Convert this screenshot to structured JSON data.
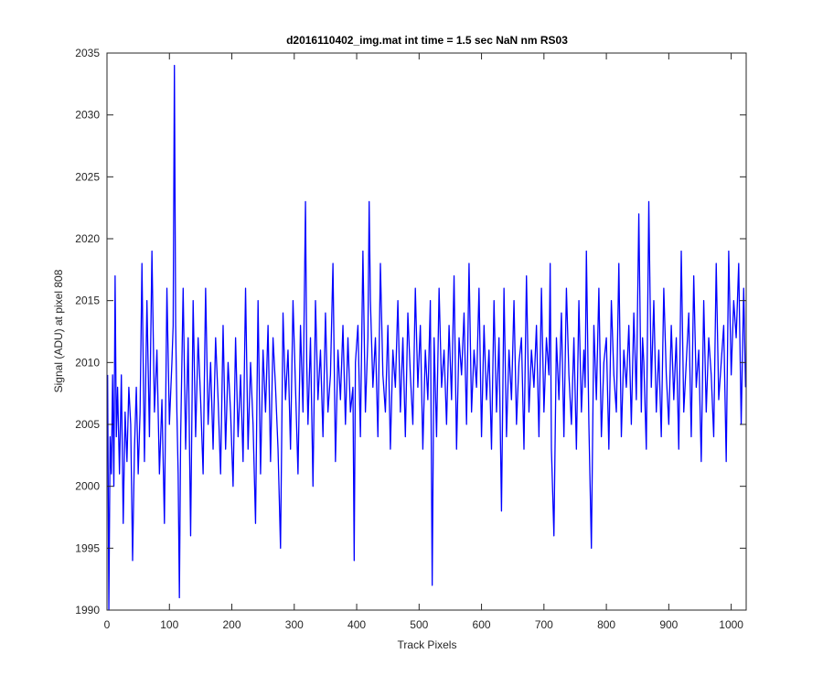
{
  "chart_data": {
    "type": "line",
    "title": "d2016110402_img.mat int time = 1.5 sec  NaN nm RS03",
    "xlabel": "Track Pixels",
    "ylabel": "Signal (ADU) at pixel 808",
    "xlim": [
      0,
      1024
    ],
    "ylim": [
      1990,
      2035
    ],
    "xticks": [
      0,
      100,
      200,
      300,
      400,
      500,
      600,
      700,
      800,
      900,
      1000
    ],
    "yticks": [
      1990,
      1995,
      2000,
      2005,
      2010,
      2015,
      2020,
      2025,
      2030,
      2035
    ],
    "grid": false,
    "line_color": "#0000ff",
    "axes_color": "#262626",
    "series": [
      {
        "x": [
          1,
          3,
          5,
          7,
          9,
          11,
          13,
          15,
          17,
          20,
          23,
          26,
          29,
          32,
          35,
          38,
          41,
          44,
          47,
          50,
          53,
          56,
          60,
          64,
          68,
          72,
          76,
          80,
          84,
          88,
          92,
          96,
          100,
          104,
          106,
          108,
          110,
          112,
          114,
          116,
          118,
          122,
          126,
          130,
          134,
          138,
          142,
          146,
          150,
          154,
          158,
          162,
          166,
          170,
          174,
          178,
          182,
          186,
          190,
          194,
          198,
          202,
          206,
          210,
          214,
          218,
          222,
          226,
          230,
          234,
          238,
          242,
          246,
          250,
          254,
          258,
          262,
          266,
          270,
          274,
          278,
          282,
          286,
          290,
          294,
          298,
          302,
          306,
          310,
          314,
          318,
          320,
          322,
          326,
          330,
          334,
          338,
          342,
          346,
          350,
          354,
          358,
          362,
          366,
          370,
          374,
          378,
          382,
          386,
          390,
          394,
          396,
          398,
          402,
          406,
          410,
          414,
          418,
          420,
          422,
          426,
          430,
          434,
          438,
          442,
          446,
          450,
          454,
          458,
          462,
          466,
          470,
          474,
          478,
          482,
          486,
          490,
          494,
          498,
          502,
          506,
          510,
          514,
          518,
          521,
          524,
          528,
          532,
          536,
          540,
          544,
          548,
          552,
          556,
          560,
          564,
          568,
          572,
          576,
          580,
          584,
          588,
          592,
          596,
          600,
          604,
          608,
          612,
          616,
          620,
          624,
          628,
          632,
          636,
          640,
          644,
          648,
          652,
          656,
          660,
          664,
          668,
          672,
          676,
          680,
          684,
          688,
          692,
          696,
          700,
          704,
          708,
          710,
          712,
          716,
          720,
          724,
          728,
          732,
          736,
          740,
          744,
          748,
          752,
          756,
          760,
          764,
          766,
          768,
          772,
          776,
          780,
          784,
          788,
          792,
          796,
          800,
          804,
          808,
          812,
          816,
          820,
          824,
          828,
          832,
          836,
          840,
          844,
          848,
          852,
          856,
          858,
          860,
          864,
          868,
          872,
          876,
          880,
          884,
          888,
          892,
          896,
          900,
          904,
          908,
          912,
          916,
          920,
          924,
          928,
          932,
          936,
          940,
          944,
          948,
          952,
          956,
          960,
          964,
          968,
          972,
          976,
          980,
          984,
          988,
          992,
          996,
          1000,
          1004,
          1008,
          1012,
          1016,
          1020,
          1023
        ],
        "y": [
          2009,
          1990,
          2004,
          2001,
          2009,
          2000,
          2017,
          2004,
          2008,
          2001,
          2009,
          1997,
          2006,
          2002,
          2008,
          2005,
          1994,
          2003,
          2008,
          2001,
          2006,
          2018,
          2002,
          2015,
          2004,
          2019,
          2006,
          2011,
          2001,
          2007,
          1997,
          2016,
          2005,
          2010,
          2013,
          2034,
          2013,
          2006,
          2001,
          1991,
          2004,
          2016,
          2003,
          2012,
          1996,
          2015,
          2004,
          2012,
          2007,
          2001,
          2016,
          2005,
          2010,
          2003,
          2012,
          2007,
          2001,
          2013,
          2003,
          2010,
          2006,
          2000,
          2012,
          2004,
          2009,
          2002,
          2016,
          2003,
          2010,
          2005,
          1997,
          2015,
          2001,
          2011,
          2006,
          2013,
          2002,
          2012,
          2008,
          2003,
          1995,
          2014,
          2007,
          2011,
          2003,
          2015,
          2008,
          2001,
          2013,
          2006,
          2023,
          2010,
          2005,
          2012,
          2000,
          2015,
          2007,
          2011,
          2004,
          2014,
          2006,
          2009,
          2018,
          2002,
          2011,
          2007,
          2013,
          2005,
          2012,
          2006,
          2008,
          1994,
          2010,
          2013,
          2004,
          2019,
          2006,
          2012,
          2023,
          2015,
          2008,
          2012,
          2004,
          2018,
          2009,
          2006,
          2013,
          2003,
          2011,
          2008,
          2015,
          2006,
          2012,
          2004,
          2014,
          2009,
          2005,
          2016,
          2008,
          2013,
          2003,
          2011,
          2007,
          2015,
          1992,
          2012,
          2004,
          2016,
          2008,
          2011,
          2005,
          2013,
          2007,
          2017,
          2003,
          2012,
          2009,
          2014,
          2005,
          2018,
          2006,
          2011,
          2008,
          2016,
          2004,
          2013,
          2007,
          2011,
          2003,
          2015,
          2006,
          2012,
          1998,
          2016,
          2004,
          2011,
          2007,
          2015,
          2005,
          2010,
          2012,
          2003,
          2017,
          2006,
          2011,
          2008,
          2013,
          2004,
          2016,
          2006,
          2012,
          2009,
          2018,
          2003,
          1996,
          2012,
          2007,
          2014,
          2004,
          2016,
          2009,
          2005,
          2012,
          2003,
          2015,
          2006,
          2011,
          2008,
          2019,
          2005,
          1995,
          2013,
          2007,
          2016,
          2004,
          2010,
          2012,
          2003,
          2015,
          2009,
          2006,
          2018,
          2004,
          2011,
          2008,
          2013,
          2005,
          2014,
          2007,
          2022,
          2006,
          2012,
          2010,
          2003,
          2023,
          2008,
          2015,
          2006,
          2011,
          2004,
          2016,
          2009,
          2005,
          2013,
          2007,
          2012,
          2003,
          2019,
          2006,
          2010,
          2014,
          2004,
          2017,
          2008,
          2011,
          2002,
          2015,
          2006,
          2012,
          2009,
          2004,
          2018,
          2007,
          2010,
          2013,
          2002,
          2019,
          2009,
          2015,
          2012,
          2018,
          2005,
          2016,
          2008
        ]
      }
    ]
  }
}
